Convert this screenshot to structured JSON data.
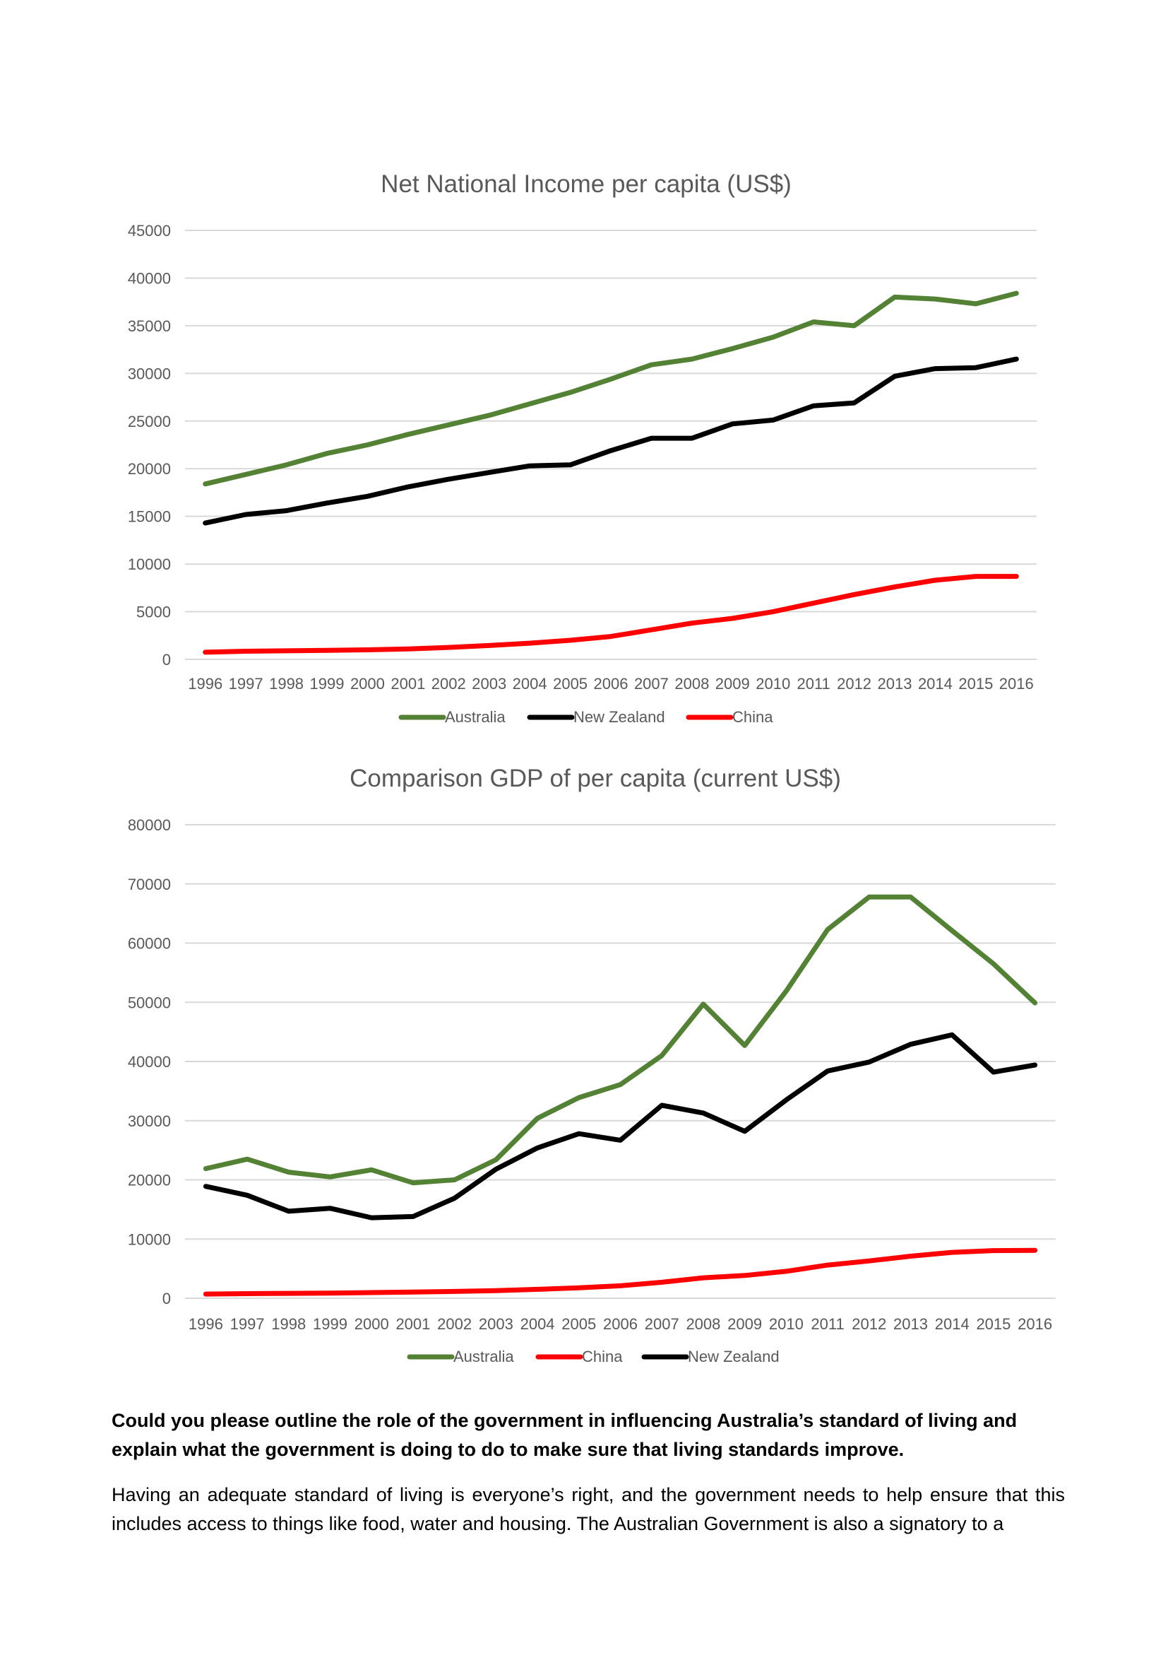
{
  "chart_data": [
    {
      "type": "line",
      "title": "Net National Income per capita (US$)",
      "xlabel": "",
      "ylabel": "",
      "ylim": [
        0,
        45000
      ],
      "yticks": [
        "0",
        "5000",
        "10000",
        "15000",
        "20000",
        "25000",
        "30000",
        "35000",
        "40000",
        "45000"
      ],
      "categories": [
        "1996",
        "1997",
        "1998",
        "1999",
        "2000",
        "2001",
        "2002",
        "2003",
        "2004",
        "2005",
        "2006",
        "2007",
        "2008",
        "2009",
        "2010",
        "2011",
        "2012",
        "2013",
        "2014",
        "2015",
        "2016"
      ],
      "grid": true,
      "legend_position": "bottom",
      "series": [
        {
          "name": "Australia",
          "color": "#548235",
          "values": [
            18400,
            19400,
            20400,
            21600,
            22500,
            23600,
            24600,
            25600,
            26800,
            28000,
            29400,
            30900,
            31500,
            32600,
            33800,
            35400,
            35000,
            38000,
            37800,
            37300,
            38400
          ]
        },
        {
          "name": "New Zealand",
          "color": "#000000",
          "values": [
            14300,
            15200,
            15600,
            16400,
            17100,
            18100,
            18900,
            19600,
            20300,
            20400,
            21900,
            23200,
            23200,
            24700,
            25100,
            26600,
            26900,
            29700,
            30500,
            30600,
            31500
          ]
        },
        {
          "name": "China",
          "color": "#ff0000",
          "values": [
            750,
            850,
            900,
            950,
            1000,
            1100,
            1250,
            1450,
            1700,
            2000,
            2400,
            3100,
            3800,
            4300,
            5000,
            5900,
            6800,
            7600,
            8300,
            8700,
            8700
          ]
        }
      ]
    },
    {
      "type": "line",
      "title": "Comparison GDP of per capita (current US$)",
      "xlabel": "",
      "ylabel": "",
      "ylim": [
        0,
        80000
      ],
      "yticks": [
        "0",
        "10000",
        "20000",
        "30000",
        "40000",
        "50000",
        "60000",
        "70000",
        "80000"
      ],
      "categories": [
        "1996",
        "1997",
        "1998",
        "1999",
        "2000",
        "2001",
        "2002",
        "2003",
        "2004",
        "2005",
        "2006",
        "2007",
        "2008",
        "2009",
        "2010",
        "2011",
        "2012",
        "2013",
        "2014",
        "2015",
        "2016"
      ],
      "grid": true,
      "legend_position": "bottom",
      "series": [
        {
          "name": "Australia",
          "color": "#548235",
          "values": [
            21900,
            23500,
            21300,
            20500,
            21700,
            19500,
            20000,
            23400,
            30400,
            33900,
            36100,
            41000,
            49700,
            42700,
            51900,
            62300,
            67800,
            67800,
            62100,
            56500,
            49900
          ]
        },
        {
          "name": "China",
          "color": "#ff0000",
          "values": [
            700,
            780,
            820,
            870,
            950,
            1050,
            1150,
            1290,
            1510,
            1750,
            2100,
            2700,
            3450,
            3850,
            4550,
            5600,
            6300,
            7100,
            7750,
            8050,
            8100
          ]
        },
        {
          "name": "New Zealand",
          "color": "#000000",
          "values": [
            18900,
            17400,
            14700,
            15200,
            13600,
            13800,
            16900,
            21800,
            25400,
            27800,
            26700,
            32600,
            31300,
            28200,
            33500,
            38400,
            39900,
            42900,
            44500,
            38200,
            39400
          ]
        }
      ]
    }
  ],
  "text": {
    "question": "Could you please outline the role of the government in influencing Australia’s standard of living and explain what the government is doing to do to make sure that living standards improve.",
    "answer": "Having an adequate standard of living is everyone’s right, and the government needs to help ensure that this includes access to things like food, water and housing. The Australian Government is also a signatory to a"
  }
}
